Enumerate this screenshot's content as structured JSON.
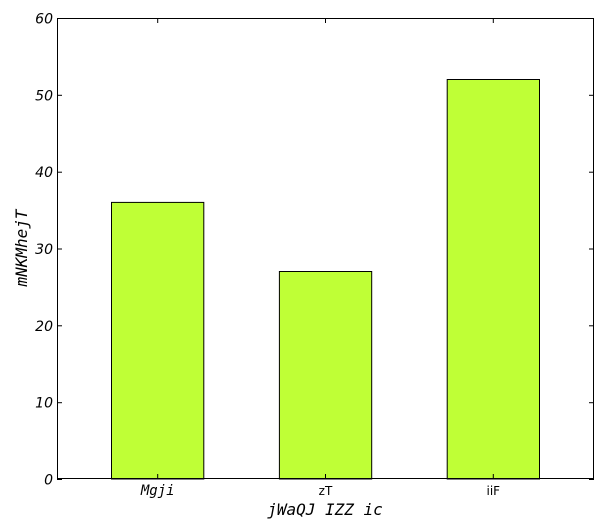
{
  "chart_data": {
    "type": "bar",
    "categories": [
      "Mgji",
      "zT",
      "iiF"
    ],
    "values": [
      36,
      27,
      52
    ],
    "title": "",
    "xlabel": "jWaQJ IZZ ic",
    "ylabel": "mNKMhejT",
    "ylim": [
      0,
      60
    ],
    "yticks": [
      0,
      10,
      20,
      30,
      40,
      50,
      60
    ],
    "grid": false,
    "bar_color": "#bfff36",
    "bar_edge_color": "#000000"
  }
}
